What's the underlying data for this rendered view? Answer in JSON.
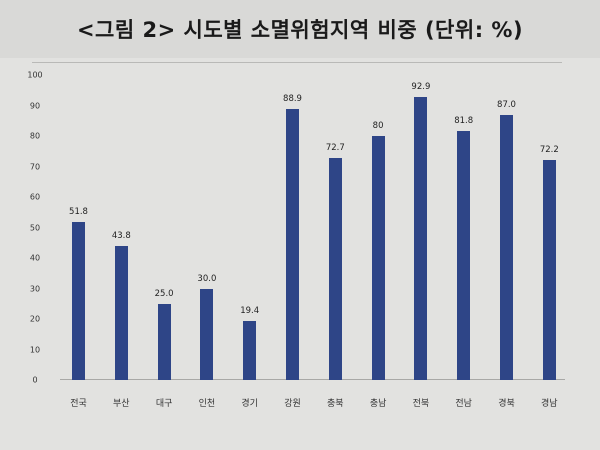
{
  "title": "<그림 2> 시도별 소멸위험지역 비중 (단위:  %)",
  "colors": {
    "bar": "#2e4587",
    "background": "#e2e2e0"
  },
  "chart_data": {
    "type": "bar",
    "title": "<그림 2> 시도별 소멸위험지역 비중 (단위: %)",
    "xlabel": "",
    "ylabel": "",
    "ylim": [
      0,
      100
    ],
    "yticks": [
      0,
      10,
      20,
      30,
      40,
      50,
      60,
      70,
      80,
      90,
      100
    ],
    "grid": false,
    "legend": null,
    "categories": [
      "전국",
      "부산",
      "대구",
      "인천",
      "경기",
      "강원",
      "충북",
      "충남",
      "전북",
      "전남",
      "경북",
      "경남"
    ],
    "values": [
      51.8,
      43.8,
      25.0,
      30.0,
      19.4,
      88.9,
      72.7,
      80,
      92.9,
      81.8,
      87.0,
      72.2
    ],
    "value_labels": [
      "51.8",
      "43.8",
      "25.0",
      "30.0",
      "19.4",
      "88.9",
      "72.7",
      "80",
      "92.9",
      "81.8",
      "87.0",
      "72.2"
    ]
  }
}
